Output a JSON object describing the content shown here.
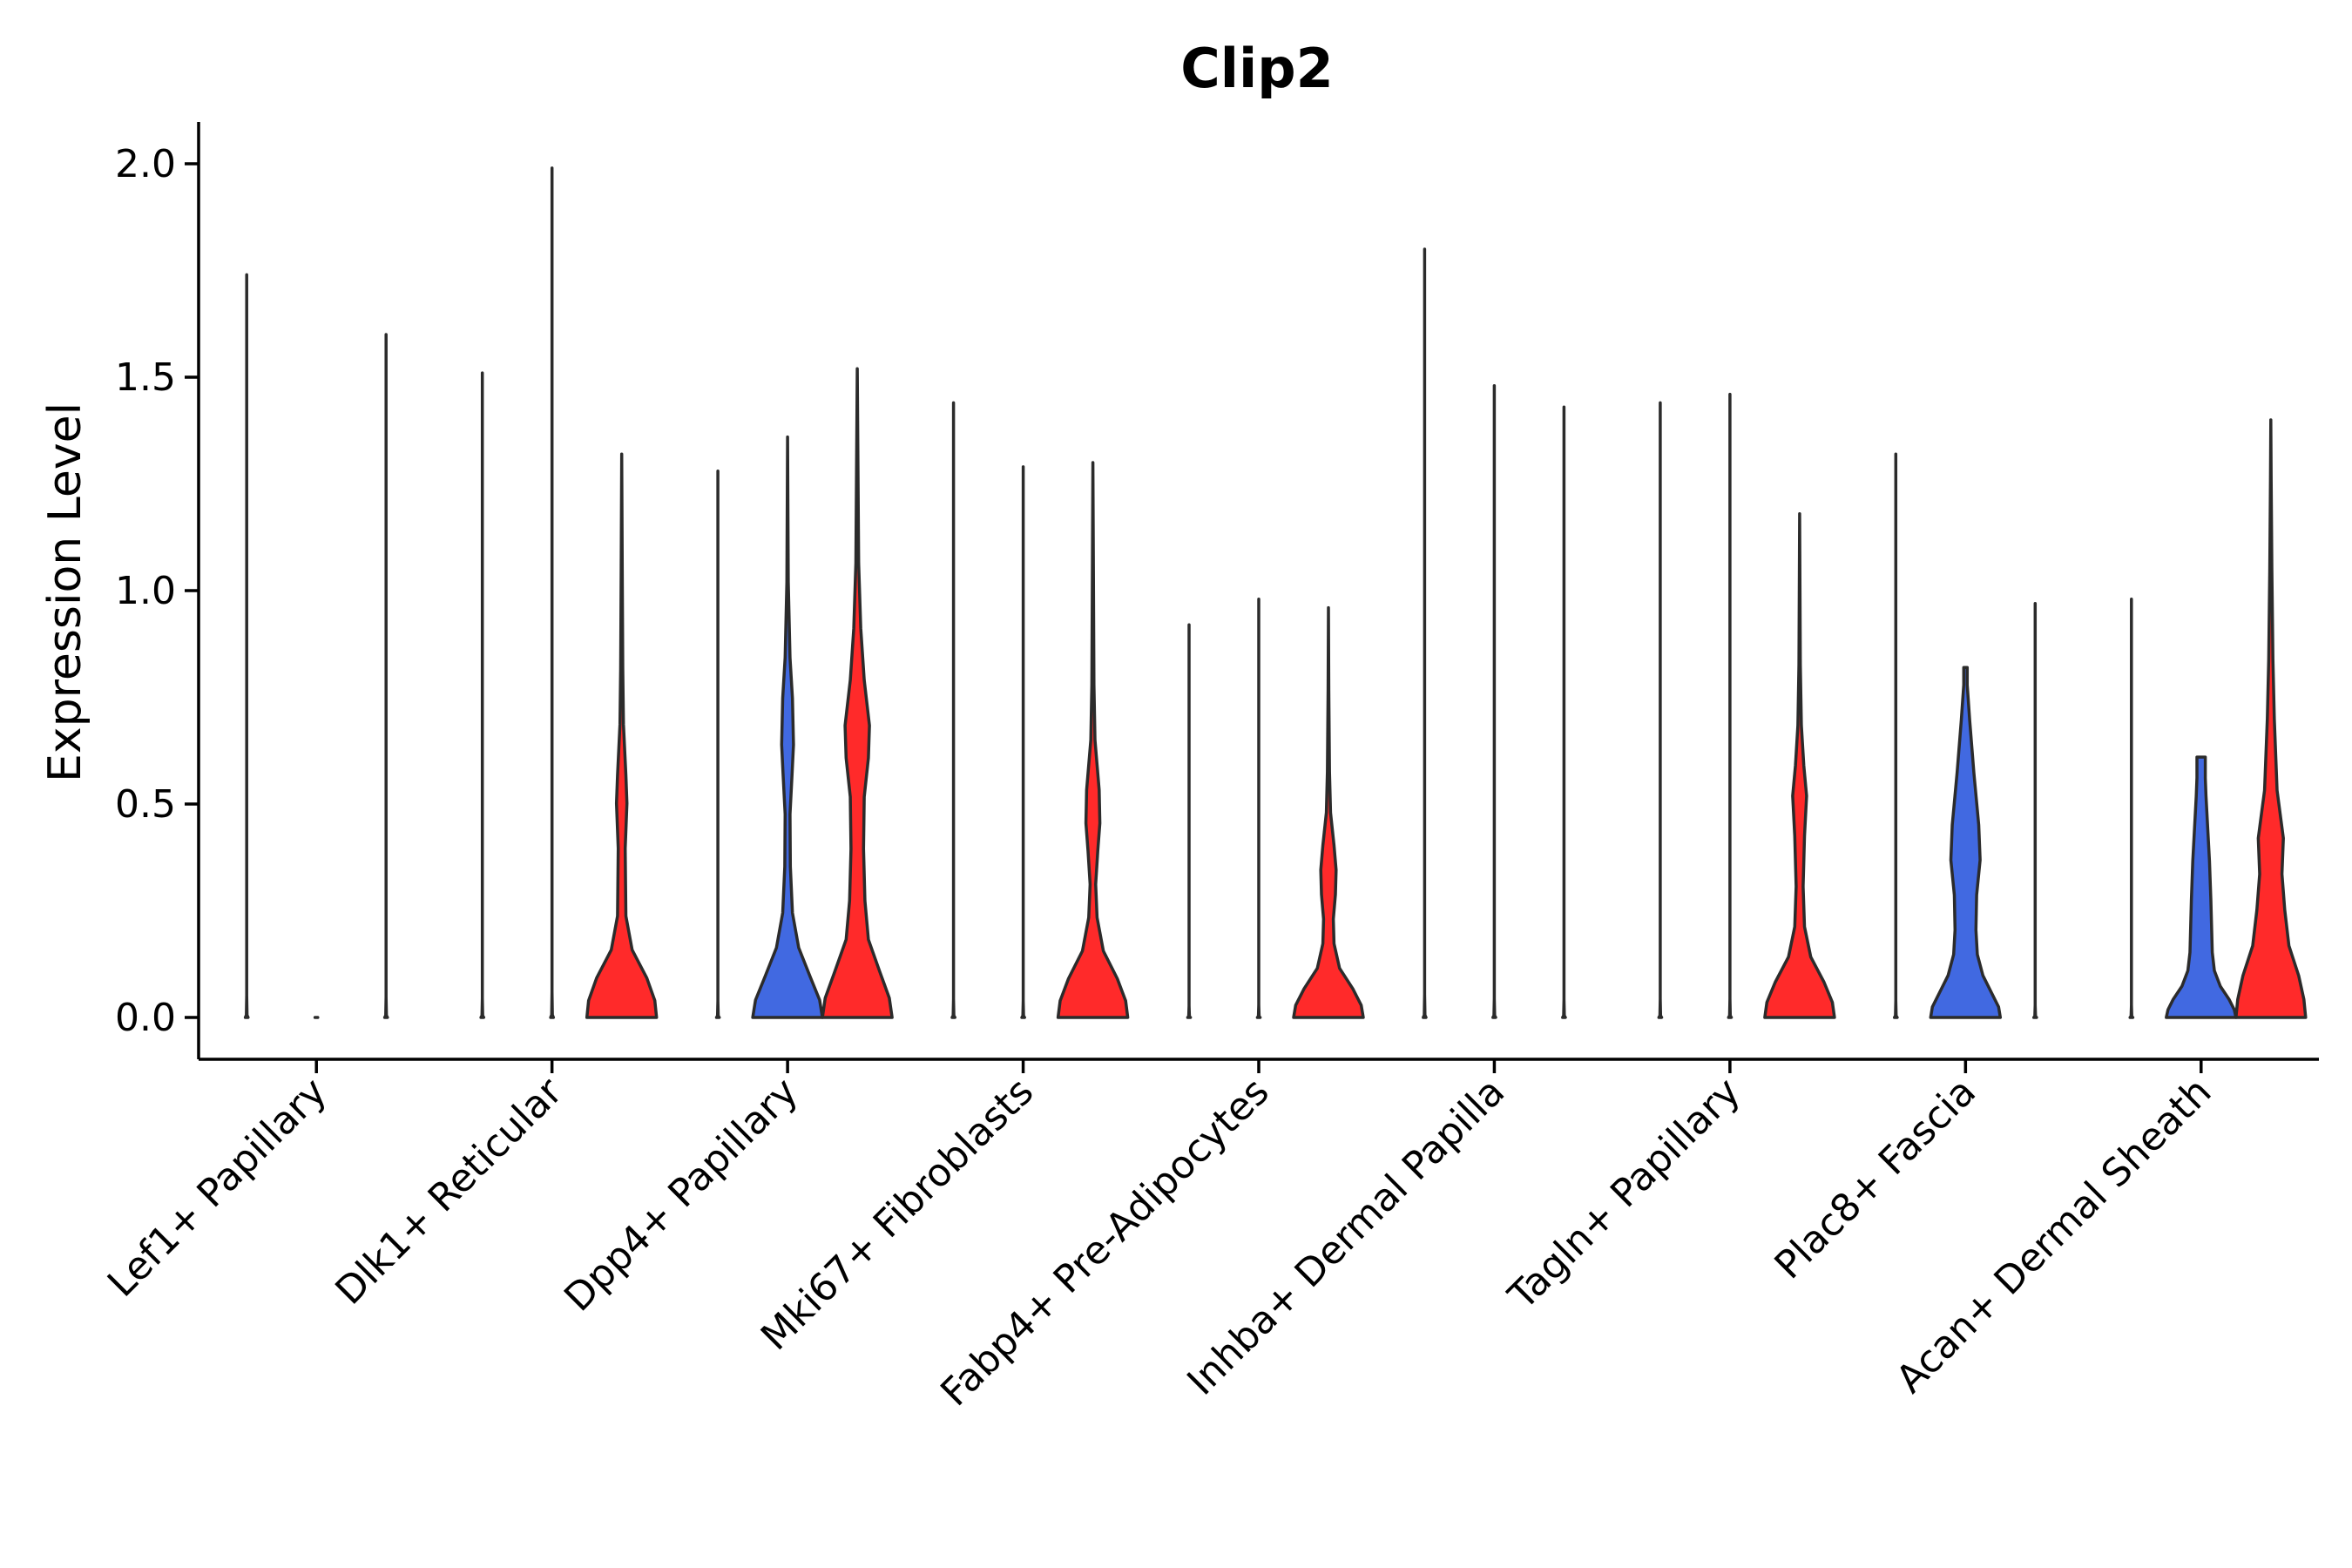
{
  "chart_data": {
    "type": "violin",
    "title": "Clip2",
    "xlabel": "",
    "ylabel": "Expression Level",
    "ylim": [
      -0.1,
      2.1
    ],
    "yticks": [
      0.0,
      0.5,
      1.0,
      1.5,
      2.0
    ],
    "ytick_labels": [
      "0.0",
      "0.5",
      "1.0",
      "1.5",
      "2.0"
    ],
    "categories": [
      "Lef1+ Papillary",
      "Dlk1+ Reticular",
      "Dpp4+ Papillary",
      "Mki67+ Fibroblasts",
      "Fabp4+ Pre-Adipocytes",
      "Inhba+ Dermal Papilla",
      "Tagln+ Papillary",
      "Plac8+ Fascia",
      "Acan+ Dermal Sheath"
    ],
    "series_colors": [
      "#ffffff",
      "#4169e1",
      "#ff2a2a"
    ],
    "groups": [
      {
        "category": "Lef1+ Papillary",
        "violins": [
          {
            "series": 0,
            "max": 1.74,
            "shape": "flat"
          },
          {
            "series": 1,
            "max": 0.0,
            "shape": "flat"
          },
          {
            "series": 2,
            "max": 1.6,
            "shape": "flat"
          }
        ]
      },
      {
        "category": "Dlk1+ Reticular",
        "violins": [
          {
            "series": 0,
            "max": 1.51,
            "shape": "flat"
          },
          {
            "series": 1,
            "max": 1.99,
            "shape": "flat"
          },
          {
            "series": 2,
            "max": 1.32,
            "shape": "red1"
          }
        ]
      },
      {
        "category": "Dpp4+ Papillary",
        "violins": [
          {
            "series": 0,
            "max": 1.28,
            "shape": "flat"
          },
          {
            "series": 1,
            "max": 1.36,
            "shape": "blue1"
          },
          {
            "series": 2,
            "max": 1.52,
            "shape": "red2"
          }
        ]
      },
      {
        "category": "Mki67+ Fibroblasts",
        "violins": [
          {
            "series": 0,
            "max": 1.44,
            "shape": "flat"
          },
          {
            "series": 1,
            "max": 1.29,
            "shape": "flat"
          },
          {
            "series": 2,
            "max": 1.3,
            "shape": "red3"
          }
        ]
      },
      {
        "category": "Fabp4+ Pre-Adipocytes",
        "violins": [
          {
            "series": 0,
            "max": 0.92,
            "shape": "flat"
          },
          {
            "series": 1,
            "max": 0.98,
            "shape": "flat"
          },
          {
            "series": 2,
            "max": 0.96,
            "shape": "red4"
          }
        ]
      },
      {
        "category": "Inhba+ Dermal Papilla",
        "violins": [
          {
            "series": 0,
            "max": 1.8,
            "shape": "flat"
          },
          {
            "series": 1,
            "max": 1.48,
            "shape": "flat"
          },
          {
            "series": 2,
            "max": 1.43,
            "shape": "flat"
          }
        ]
      },
      {
        "category": "Tagln+ Papillary",
        "violins": [
          {
            "series": 0,
            "max": 1.44,
            "shape": "flat"
          },
          {
            "series": 1,
            "max": 1.46,
            "shape": "flat"
          },
          {
            "series": 2,
            "max": 1.18,
            "shape": "red5"
          }
        ]
      },
      {
        "category": "Plac8+ Fascia",
        "violins": [
          {
            "series": 0,
            "max": 1.32,
            "shape": "flat"
          },
          {
            "series": 1,
            "max": 0.82,
            "shape": "blue2"
          },
          {
            "series": 2,
            "max": 0.97,
            "shape": "flat"
          }
        ]
      },
      {
        "category": "Acan+ Dermal Sheath",
        "violins": [
          {
            "series": 0,
            "max": 0.98,
            "shape": "flat"
          },
          {
            "series": 1,
            "max": 0.61,
            "shape": "blue3"
          },
          {
            "series": 2,
            "max": 1.4,
            "shape": "red6"
          }
        ]
      }
    ]
  }
}
